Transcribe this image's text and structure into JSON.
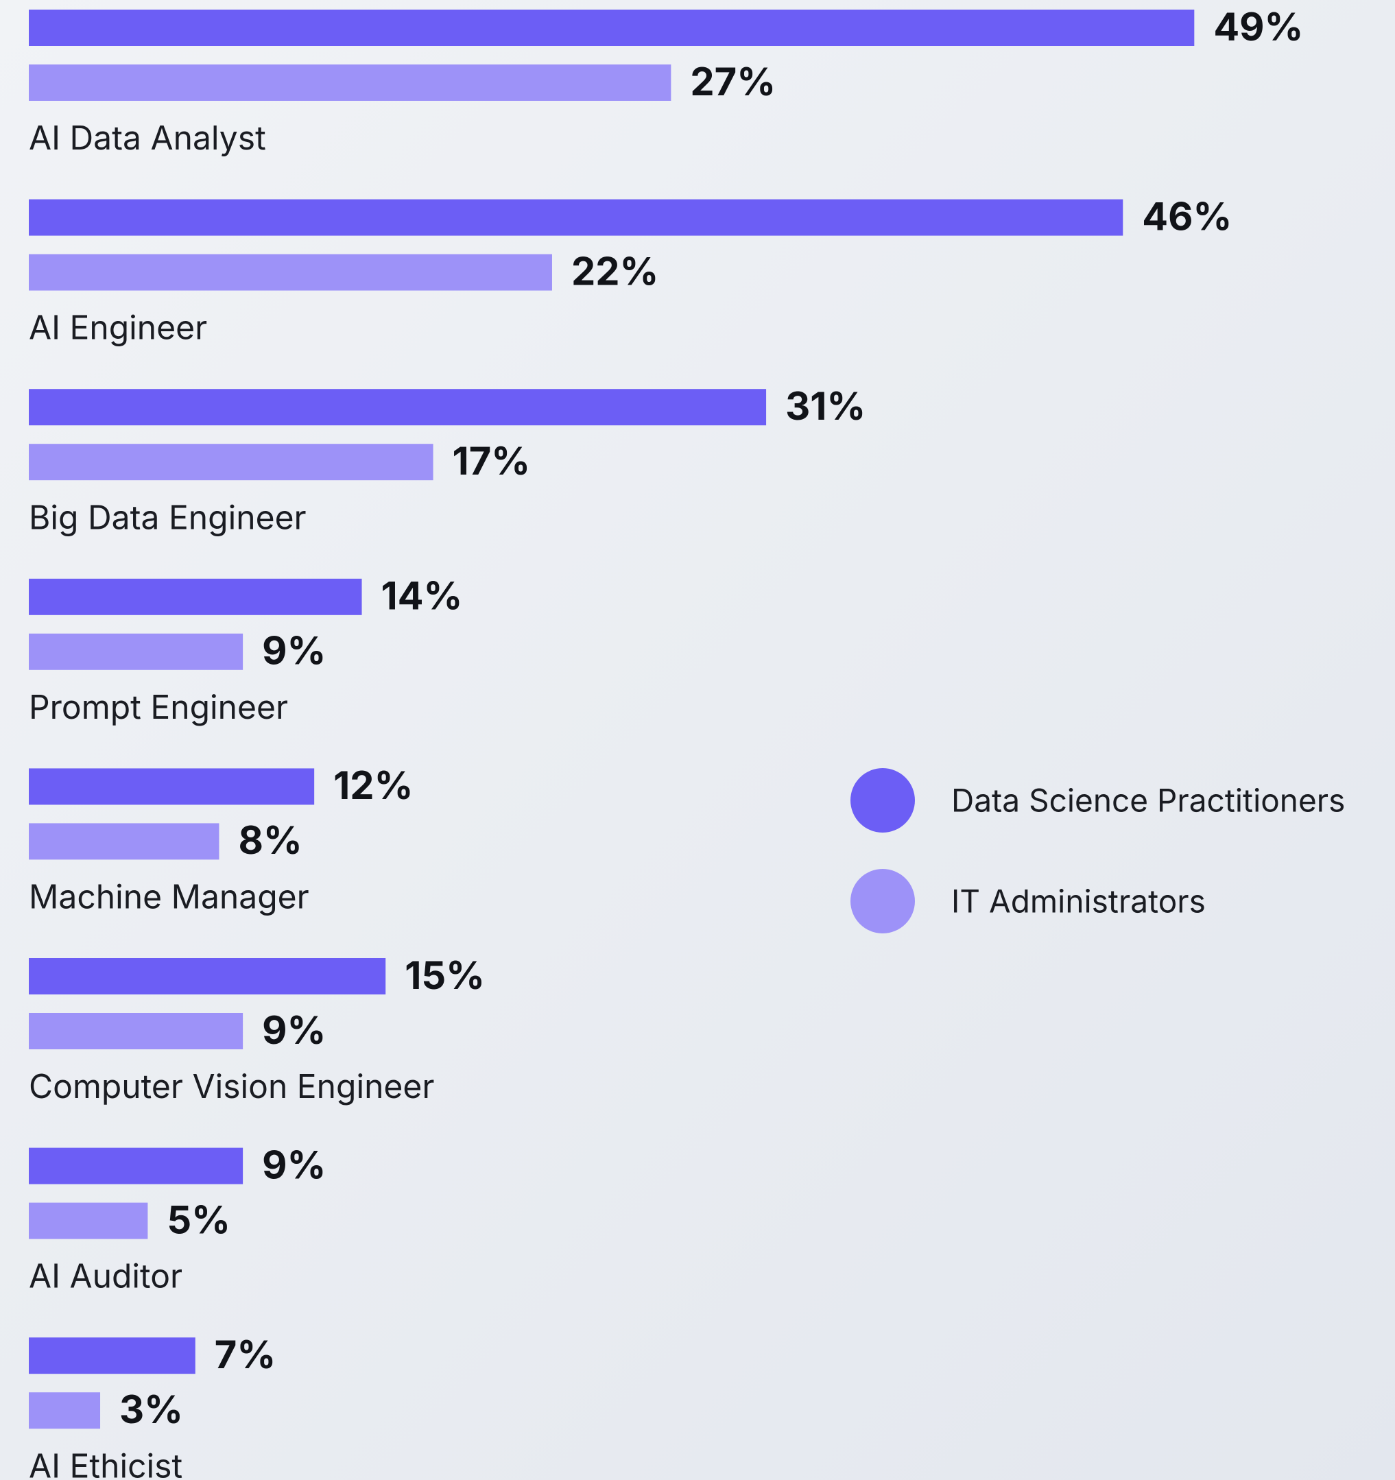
{
  "chart_data": {
    "type": "bar",
    "orientation": "horizontal",
    "categories": [
      "AI Data Analyst",
      "AI Engineer",
      "Big Data Engineer",
      "Prompt Engineer",
      "Machine Manager",
      "Computer Vision Engineer",
      "AI Auditor",
      "AI Ethicist"
    ],
    "series": [
      {
        "name": "Data Science Practitioners",
        "color": "#6c5ef5",
        "values": [
          49,
          46,
          31,
          14,
          12,
          15,
          9,
          7
        ],
        "value_labels": [
          "49%",
          "46%",
          "31%",
          "14%",
          "12%",
          "15%",
          "9%",
          "7%"
        ]
      },
      {
        "name": "IT Administrators",
        "color": "#9d92f8",
        "values": [
          27,
          22,
          17,
          9,
          8,
          9,
          5,
          3
        ],
        "value_labels": [
          "27%",
          "22%",
          "17%",
          "9%",
          "8%",
          "9%",
          "5%",
          "3%"
        ]
      }
    ]
  }
}
